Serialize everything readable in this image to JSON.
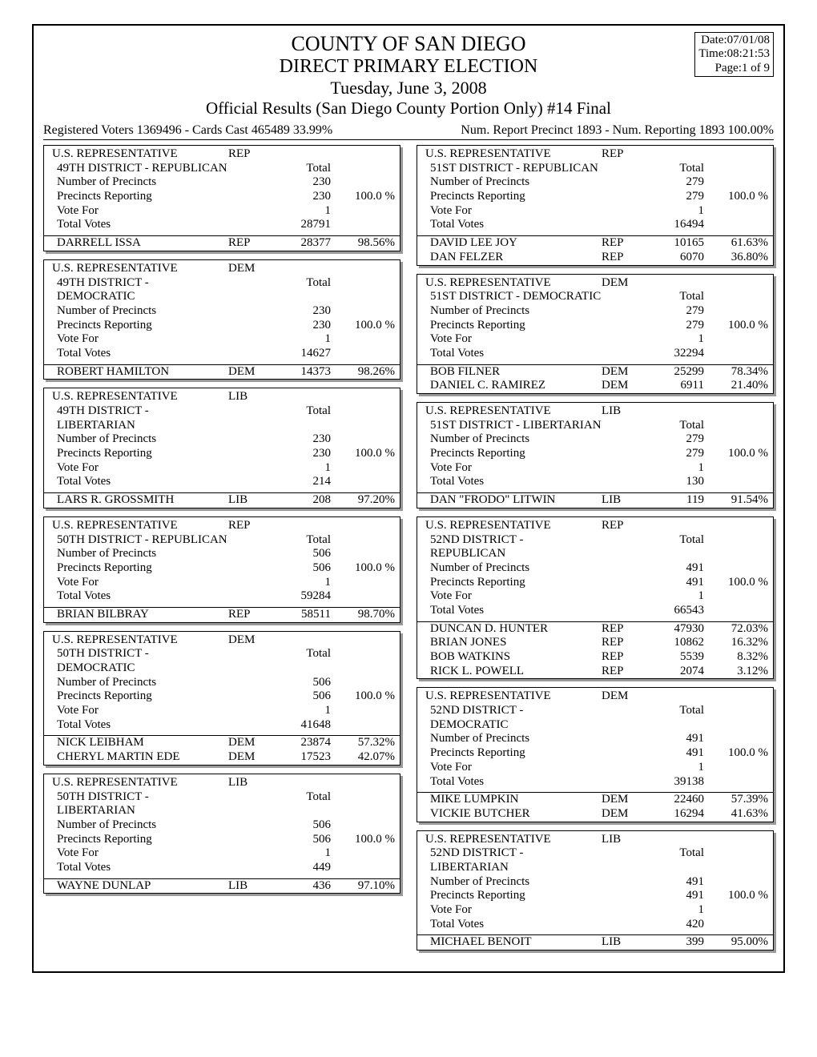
{
  "meta": {
    "date": "Date:07/01/08",
    "time": "Time:08:21:53",
    "page": "Page:1 of 9"
  },
  "header": {
    "l1": "COUNTY OF SAN DIEGO",
    "l2": "DIRECT PRIMARY ELECTION",
    "l3": "Tuesday, June 3,  2008",
    "l4": "Official Results  (San Diego County Portion Only)    #14 Final"
  },
  "summary": {
    "left": "Registered Voters 1369496 - Cards Cast 465489    33.99%",
    "right": "Num. Report Precinct 1893 - Num. Reporting 1893     100.00%"
  },
  "left": [
    {
      "title": "U.S. REPRESENTATIVE",
      "party": "REP",
      "sub": "49TH DISTRICT - REPUBLICAN",
      "stats": [
        [
          "Number of Precincts",
          "230",
          ""
        ],
        [
          "Precincts Reporting",
          "230",
          "100.0  %"
        ],
        [
          "Vote For",
          "1",
          ""
        ],
        [
          "Total Votes",
          "28791",
          ""
        ]
      ],
      "cands": [
        [
          "DARRELL  ISSA",
          "REP",
          "28377",
          "98.56%"
        ]
      ]
    },
    {
      "title": "U.S. REPRESENTATIVE",
      "party": "DEM",
      "sub": "49TH DISTRICT - DEMOCRATIC",
      "stats": [
        [
          "Number of Precincts",
          "230",
          ""
        ],
        [
          "Precincts Reporting",
          "230",
          "100.0  %"
        ],
        [
          "Vote For",
          "1",
          ""
        ],
        [
          "Total Votes",
          "14627",
          ""
        ]
      ],
      "cands": [
        [
          "ROBERT  HAMILTON",
          "DEM",
          "14373",
          "98.26%"
        ]
      ]
    },
    {
      "title": "U.S. REPRESENTATIVE",
      "party": "LIB",
      "sub": "49TH DISTRICT - LIBERTARIAN",
      "stats": [
        [
          "Number of Precincts",
          "230",
          ""
        ],
        [
          "Precincts Reporting",
          "230",
          "100.0  %"
        ],
        [
          "Vote For",
          "1",
          ""
        ],
        [
          "Total Votes",
          "214",
          ""
        ]
      ],
      "cands": [
        [
          "LARS R. GROSSMITH",
          "LIB",
          "208",
          "97.20%"
        ]
      ]
    },
    {
      "title": "U.S. REPRESENTATIVE",
      "party": "REP",
      "sub": "50TH DISTRICT - REPUBLICAN",
      "stats": [
        [
          "Number of Precincts",
          "506",
          ""
        ],
        [
          "Precincts Reporting",
          "506",
          "100.0  %"
        ],
        [
          "Vote For",
          "1",
          ""
        ],
        [
          "Total Votes",
          "59284",
          ""
        ]
      ],
      "cands": [
        [
          "BRIAN  BILBRAY",
          "REP",
          "58511",
          "98.70%"
        ]
      ]
    },
    {
      "title": "U.S. REPRESENTATIVE",
      "party": "DEM",
      "sub": "50TH DISTRICT - DEMOCRATIC",
      "stats": [
        [
          "Number of Precincts",
          "506",
          ""
        ],
        [
          "Precincts Reporting",
          "506",
          "100.0  %"
        ],
        [
          "Vote For",
          "1",
          ""
        ],
        [
          "Total Votes",
          "41648",
          ""
        ]
      ],
      "cands": [
        [
          "NICK  LEIBHAM",
          "DEM",
          "23874",
          "57.32%"
        ],
        [
          "CHERYL MARTIN EDE",
          "DEM",
          "17523",
          "42.07%"
        ]
      ]
    },
    {
      "title": "U.S. REPRESENTATIVE",
      "party": "LIB",
      "sub": "50TH DISTRICT - LIBERTARIAN",
      "stats": [
        [
          "Number of Precincts",
          "506",
          ""
        ],
        [
          "Precincts Reporting",
          "506",
          "100.0  %"
        ],
        [
          "Vote For",
          "1",
          ""
        ],
        [
          "Total Votes",
          "449",
          ""
        ]
      ],
      "cands": [
        [
          "WAYNE  DUNLAP",
          "LIB",
          "436",
          "97.10%"
        ]
      ]
    }
  ],
  "right": [
    {
      "title": "U.S. REPRESENTATIVE",
      "party": "REP",
      "sub": "51ST DISTRICT - REPUBLICAN",
      "stats": [
        [
          "Number of Precincts",
          "279",
          ""
        ],
        [
          "Precincts Reporting",
          "279",
          "100.0  %"
        ],
        [
          "Vote For",
          "1",
          ""
        ],
        [
          "Total Votes",
          "16494",
          ""
        ]
      ],
      "cands": [
        [
          "DAVID LEE JOY",
          "REP",
          "10165",
          "61.63%"
        ],
        [
          "DAN  FELZER",
          "REP",
          "6070",
          "36.80%"
        ]
      ]
    },
    {
      "title": "U.S. REPRESENTATIVE",
      "party": "DEM",
      "sub": "51ST DISTRICT - DEMOCRATIC",
      "stats": [
        [
          "Number of Precincts",
          "279",
          ""
        ],
        [
          "Precincts Reporting",
          "279",
          "100.0  %"
        ],
        [
          "Vote For",
          "1",
          ""
        ],
        [
          "Total Votes",
          "32294",
          ""
        ]
      ],
      "cands": [
        [
          "BOB  FILNER",
          "DEM",
          "25299",
          "78.34%"
        ],
        [
          "DANIEL C. RAMIREZ",
          "DEM",
          "6911",
          "21.40%"
        ]
      ]
    },
    {
      "title": "U.S. REPRESENTATIVE",
      "party": "LIB",
      "sub": "51ST DISTRICT - LIBERTARIAN",
      "stats": [
        [
          "Number of Precincts",
          "279",
          ""
        ],
        [
          "Precincts Reporting",
          "279",
          "100.0  %"
        ],
        [
          "Vote For",
          "1",
          ""
        ],
        [
          "Total Votes",
          "130",
          ""
        ]
      ],
      "cands": [
        [
          "DAN \"FRODO\" LITWIN",
          "LIB",
          "119",
          "91.54%"
        ]
      ]
    },
    {
      "title": "U.S. REPRESENTATIVE",
      "party": "REP",
      "sub": "52ND DISTRICT - REPUBLICAN",
      "stats": [
        [
          "Number of Precincts",
          "491",
          ""
        ],
        [
          "Precincts Reporting",
          "491",
          "100.0  %"
        ],
        [
          "Vote For",
          "1",
          ""
        ],
        [
          "Total Votes",
          "66543",
          ""
        ]
      ],
      "cands": [
        [
          "DUNCAN D. HUNTER",
          "REP",
          "47930",
          "72.03%"
        ],
        [
          "BRIAN  JONES",
          "REP",
          "10862",
          "16.32%"
        ],
        [
          "BOB  WATKINS",
          "REP",
          "5539",
          "8.32%"
        ],
        [
          "RICK L. POWELL",
          "REP",
          "2074",
          "3.12%"
        ]
      ]
    },
    {
      "title": "U.S. REPRESENTATIVE",
      "party": "DEM",
      "sub": "52ND DISTRICT - DEMOCRATIC",
      "stats": [
        [
          "Number of Precincts",
          "491",
          ""
        ],
        [
          "Precincts Reporting",
          "491",
          "100.0  %"
        ],
        [
          "Vote For",
          "1",
          ""
        ],
        [
          "Total Votes",
          "39138",
          ""
        ]
      ],
      "cands": [
        [
          "MIKE  LUMPKIN",
          "DEM",
          "22460",
          "57.39%"
        ],
        [
          "VICKIE  BUTCHER",
          "DEM",
          "16294",
          "41.63%"
        ]
      ]
    },
    {
      "title": "U.S. REPRESENTATIVE",
      "party": "LIB",
      "sub": "52ND DISTRICT - LIBERTARIAN",
      "stats": [
        [
          "Number of Precincts",
          "491",
          ""
        ],
        [
          "Precincts Reporting",
          "491",
          "100.0  %"
        ],
        [
          "Vote For",
          "1",
          ""
        ],
        [
          "Total Votes",
          "420",
          ""
        ]
      ],
      "cands": [
        [
          "MICHAEL  BENOIT",
          "LIB",
          "399",
          "95.00%"
        ]
      ]
    }
  ],
  "labels": {
    "total": "Total"
  }
}
